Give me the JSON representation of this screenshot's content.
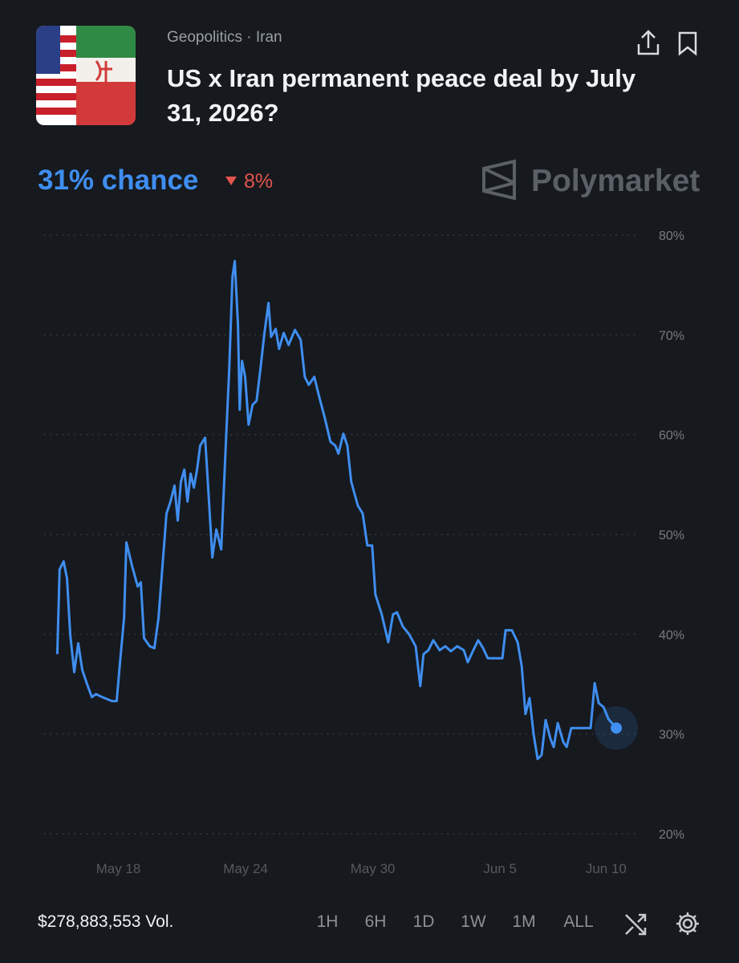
{
  "header": {
    "category": "Geopolitics · Iran",
    "title": "US x Iran permanent peace deal by July 31, 2026?"
  },
  "summary": {
    "chance": "31% chance",
    "change": "8%"
  },
  "brand": "Polymarket",
  "chart_data": {
    "type": "line",
    "color": "#3f8ef0",
    "grid": true,
    "x": [
      15.12,
      15.23,
      15.42,
      15.58,
      15.73,
      15.92,
      16.11,
      16.3,
      16.56,
      16.75,
      16.94,
      17.24,
      17.7,
      17.92,
      18.08,
      18.27,
      18.38,
      18.64,
      18.91,
      19.06,
      19.21,
      19.48,
      19.7,
      19.89,
      20.05,
      20.27,
      20.46,
      20.65,
      20.8,
      20.95,
      21.11,
      21.26,
      21.41,
      21.56,
      21.71,
      21.86,
      22.09,
      22.24,
      22.43,
      22.62,
      22.85,
      23.08,
      23.23,
      23.38,
      23.49,
      23.64,
      23.72,
      23.83,
      23.98,
      24.14,
      24.33,
      24.52,
      24.7,
      24.89,
      25.08,
      25.2,
      25.42,
      25.58,
      25.8,
      26.03,
      26.33,
      26.6,
      26.79,
      26.98,
      27.24,
      27.47,
      27.73,
      28.0,
      28.23,
      28.38,
      28.61,
      28.8,
      28.98,
      29.29,
      29.52,
      29.74,
      29.97,
      30.12,
      30.42,
      30.73,
      30.95,
      31.14,
      31.41,
      31.71,
      32.02,
      32.24,
      32.39,
      32.62,
      32.85,
      33.15,
      33.42,
      33.68,
      33.98,
      34.29,
      34.48,
      34.74,
      34.97,
      35.2,
      35.42,
      36.11,
      36.26,
      36.56,
      36.83,
      37.02,
      37.2,
      37.39,
      37.58,
      37.77,
      37.96,
      38.15,
      38.38,
      38.53,
      38.72,
      38.98,
      39.14,
      39.36,
      40.27,
      40.46,
      40.65,
      40.88,
      41.11,
      41.48
    ],
    "values": [
      38.0,
      46.5,
      47.3,
      45.6,
      40.0,
      36.2,
      39.1,
      36.4,
      34.8,
      33.7,
      34.0,
      33.7,
      33.3,
      33.3,
      37.2,
      41.6,
      49.2,
      46.9,
      44.8,
      45.2,
      39.6,
      38.8,
      38.6,
      41.6,
      46.0,
      52.1,
      53.3,
      54.9,
      51.4,
      55.3,
      56.5,
      53.3,
      56.1,
      54.7,
      56.5,
      58.9,
      59.7,
      54.5,
      47.7,
      50.5,
      48.5,
      59.7,
      66.6,
      75.8,
      77.4,
      71.0,
      62.5,
      67.4,
      65.8,
      61.0,
      63.0,
      63.4,
      66.6,
      70.2,
      73.2,
      69.8,
      70.6,
      68.6,
      70.2,
      69.0,
      70.5,
      69.5,
      65.8,
      65.0,
      65.8,
      63.8,
      61.7,
      59.3,
      58.9,
      58.1,
      60.1,
      58.9,
      55.3,
      52.9,
      52.1,
      48.9,
      48.9,
      44.0,
      42.0,
      39.2,
      42.0,
      42.2,
      40.8,
      40.0,
      38.8,
      34.8,
      38.0,
      38.4,
      39.4,
      38.4,
      38.8,
      38.3,
      38.8,
      38.4,
      37.2,
      38.4,
      39.4,
      38.6,
      37.6,
      37.6,
      40.4,
      40.4,
      39.2,
      36.8,
      32.0,
      33.6,
      30.0,
      27.5,
      27.9,
      31.4,
      29.5,
      28.7,
      31.1,
      29.2,
      28.7,
      30.6,
      30.6,
      35.1,
      33.1,
      32.7,
      31.5,
      30.6
    ],
    "xlim": [
      14.5,
      42.5
    ],
    "xticks": [
      {
        "value": 18,
        "label": "May 18"
      },
      {
        "value": 24,
        "label": "May 24"
      },
      {
        "value": 30,
        "label": "May 30"
      },
      {
        "value": 36,
        "label": "Jun 5"
      },
      {
        "value": 41,
        "label": "Jun 10"
      }
    ],
    "ylim": [
      20,
      80
    ],
    "yticks": [
      {
        "value": 20,
        "label": "20%"
      },
      {
        "value": 30,
        "label": "30%"
      },
      {
        "value": 40,
        "label": "40%"
      },
      {
        "value": 50,
        "label": "50%"
      },
      {
        "value": 60,
        "label": "60%"
      },
      {
        "value": 70,
        "label": "70%"
      },
      {
        "value": 80,
        "label": "80%"
      }
    ]
  },
  "footer": {
    "volume": "$278,883,553 Vol.",
    "ranges": [
      "1H",
      "6H",
      "1D",
      "1W",
      "1M",
      "ALL"
    ]
  }
}
